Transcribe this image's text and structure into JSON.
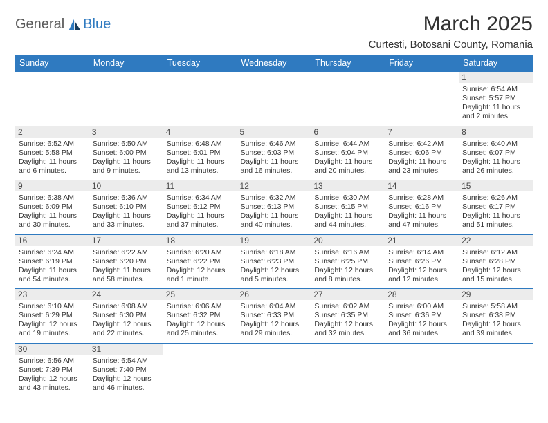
{
  "brand": {
    "name1": "General",
    "name2": "Blue",
    "icon_fill": "#2f7ac0"
  },
  "title": "March 2025",
  "location": "Curtesti, Botosani County, Romania",
  "colors": {
    "header_bg": "#2f7ac0",
    "header_text": "#ffffff",
    "rule": "#2f7ac0",
    "daynum_bg": "#ececec",
    "text": "#333333"
  },
  "layout": {
    "columns": 7,
    "rows": 6,
    "first_weekday_index": 6
  },
  "weekdays": [
    "Sunday",
    "Monday",
    "Tuesday",
    "Wednesday",
    "Thursday",
    "Friday",
    "Saturday"
  ],
  "days": [
    {
      "n": 1,
      "sunrise": "6:54 AM",
      "sunset": "5:57 PM",
      "daylight": "11 hours and 2 minutes."
    },
    {
      "n": 2,
      "sunrise": "6:52 AM",
      "sunset": "5:58 PM",
      "daylight": "11 hours and 6 minutes."
    },
    {
      "n": 3,
      "sunrise": "6:50 AM",
      "sunset": "6:00 PM",
      "daylight": "11 hours and 9 minutes."
    },
    {
      "n": 4,
      "sunrise": "6:48 AM",
      "sunset": "6:01 PM",
      "daylight": "11 hours and 13 minutes."
    },
    {
      "n": 5,
      "sunrise": "6:46 AM",
      "sunset": "6:03 PM",
      "daylight": "11 hours and 16 minutes."
    },
    {
      "n": 6,
      "sunrise": "6:44 AM",
      "sunset": "6:04 PM",
      "daylight": "11 hours and 20 minutes."
    },
    {
      "n": 7,
      "sunrise": "6:42 AM",
      "sunset": "6:06 PM",
      "daylight": "11 hours and 23 minutes."
    },
    {
      "n": 8,
      "sunrise": "6:40 AM",
      "sunset": "6:07 PM",
      "daylight": "11 hours and 26 minutes."
    },
    {
      "n": 9,
      "sunrise": "6:38 AM",
      "sunset": "6:09 PM",
      "daylight": "11 hours and 30 minutes."
    },
    {
      "n": 10,
      "sunrise": "6:36 AM",
      "sunset": "6:10 PM",
      "daylight": "11 hours and 33 minutes."
    },
    {
      "n": 11,
      "sunrise": "6:34 AM",
      "sunset": "6:12 PM",
      "daylight": "11 hours and 37 minutes."
    },
    {
      "n": 12,
      "sunrise": "6:32 AM",
      "sunset": "6:13 PM",
      "daylight": "11 hours and 40 minutes."
    },
    {
      "n": 13,
      "sunrise": "6:30 AM",
      "sunset": "6:15 PM",
      "daylight": "11 hours and 44 minutes."
    },
    {
      "n": 14,
      "sunrise": "6:28 AM",
      "sunset": "6:16 PM",
      "daylight": "11 hours and 47 minutes."
    },
    {
      "n": 15,
      "sunrise": "6:26 AM",
      "sunset": "6:17 PM",
      "daylight": "11 hours and 51 minutes."
    },
    {
      "n": 16,
      "sunrise": "6:24 AM",
      "sunset": "6:19 PM",
      "daylight": "11 hours and 54 minutes."
    },
    {
      "n": 17,
      "sunrise": "6:22 AM",
      "sunset": "6:20 PM",
      "daylight": "11 hours and 58 minutes."
    },
    {
      "n": 18,
      "sunrise": "6:20 AM",
      "sunset": "6:22 PM",
      "daylight": "12 hours and 1 minute."
    },
    {
      "n": 19,
      "sunrise": "6:18 AM",
      "sunset": "6:23 PM",
      "daylight": "12 hours and 5 minutes."
    },
    {
      "n": 20,
      "sunrise": "6:16 AM",
      "sunset": "6:25 PM",
      "daylight": "12 hours and 8 minutes."
    },
    {
      "n": 21,
      "sunrise": "6:14 AM",
      "sunset": "6:26 PM",
      "daylight": "12 hours and 12 minutes."
    },
    {
      "n": 22,
      "sunrise": "6:12 AM",
      "sunset": "6:28 PM",
      "daylight": "12 hours and 15 minutes."
    },
    {
      "n": 23,
      "sunrise": "6:10 AM",
      "sunset": "6:29 PM",
      "daylight": "12 hours and 19 minutes."
    },
    {
      "n": 24,
      "sunrise": "6:08 AM",
      "sunset": "6:30 PM",
      "daylight": "12 hours and 22 minutes."
    },
    {
      "n": 25,
      "sunrise": "6:06 AM",
      "sunset": "6:32 PM",
      "daylight": "12 hours and 25 minutes."
    },
    {
      "n": 26,
      "sunrise": "6:04 AM",
      "sunset": "6:33 PM",
      "daylight": "12 hours and 29 minutes."
    },
    {
      "n": 27,
      "sunrise": "6:02 AM",
      "sunset": "6:35 PM",
      "daylight": "12 hours and 32 minutes."
    },
    {
      "n": 28,
      "sunrise": "6:00 AM",
      "sunset": "6:36 PM",
      "daylight": "12 hours and 36 minutes."
    },
    {
      "n": 29,
      "sunrise": "5:58 AM",
      "sunset": "6:38 PM",
      "daylight": "12 hours and 39 minutes."
    },
    {
      "n": 30,
      "sunrise": "6:56 AM",
      "sunset": "7:39 PM",
      "daylight": "12 hours and 43 minutes."
    },
    {
      "n": 31,
      "sunrise": "6:54 AM",
      "sunset": "7:40 PM",
      "daylight": "12 hours and 46 minutes."
    }
  ],
  "labels": {
    "sunrise": "Sunrise: ",
    "sunset": "Sunset: ",
    "daylight": "Daylight: "
  }
}
